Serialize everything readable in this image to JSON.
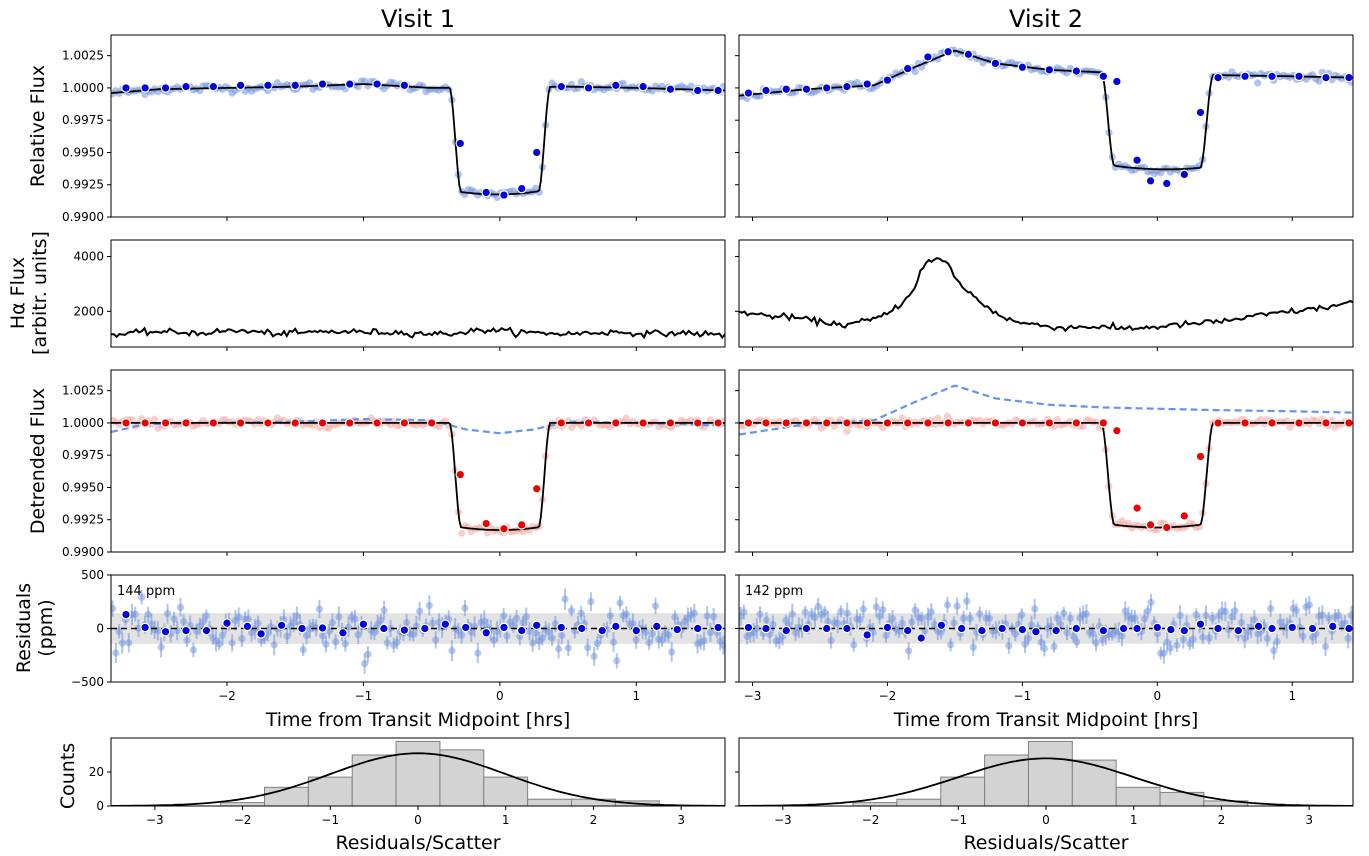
{
  "columns": [
    {
      "title": "Visit 1"
    },
    {
      "title": "Visit 2"
    }
  ],
  "labels": {
    "row1": "Relative Flux",
    "row2_line1": "Hα Flux",
    "row2_line2": "[arbitr. units]",
    "row3": "Detrended Flux",
    "row4_line1": "Residuals",
    "row4_line2": "(ppm)",
    "row5": "Counts",
    "time_xlabel": "Time from Transit Midpoint [hrs]",
    "hist_xlabel": "Residuals/Scatter"
  },
  "colors": {
    "raw_points": "#6f94e0",
    "binned_blue": "#0000dd",
    "binned_red": "#ee0000",
    "raw_red": "#f4a7a0",
    "model": "#000000",
    "baseline_dashed": "#6495ed",
    "hist_fill": "#d3d3d3",
    "hist_edge": "#808080",
    "scatter_band": "#d9d9d9"
  },
  "chart_data": [
    {
      "panel": "visit1-relative-flux",
      "type": "scatter",
      "title": "Visit 1",
      "ylabel": "Relative Flux",
      "xlim": [
        -2.85,
        1.65
      ],
      "ylim": [
        0.99,
        1.0041
      ],
      "yticks": [
        0.99,
        0.9925,
        0.995,
        0.9975,
        1.0,
        1.0025
      ],
      "transit": {
        "t0": 0.0,
        "depth": 0.0083,
        "ingress_half": 0.33
      },
      "baseline_nodes": [
        [
          -2.85,
          0.9996
        ],
        [
          -2.5,
          0.9999
        ],
        [
          -1.5,
          1.0001
        ],
        [
          -1.0,
          1.0003
        ],
        [
          -0.5,
          1.0
        ],
        [
          0.5,
          1.0001
        ],
        [
          1.0,
          1.0
        ],
        [
          1.65,
          0.9998
        ]
      ],
      "binned": [
        [
          -2.74,
          1.0
        ],
        [
          -2.6,
          1.0
        ],
        [
          -2.45,
          1.0
        ],
        [
          -2.3,
          1.0001
        ],
        [
          -2.1,
          1.0001
        ],
        [
          -1.9,
          1.0002
        ],
        [
          -1.7,
          1.0002
        ],
        [
          -1.5,
          1.0002
        ],
        [
          -1.3,
          1.0003
        ],
        [
          -1.1,
          1.0003
        ],
        [
          -0.9,
          1.0003
        ],
        [
          -0.7,
          1.0002
        ],
        [
          -0.29,
          0.9957
        ],
        [
          -0.1,
          0.9919
        ],
        [
          0.03,
          0.9917
        ],
        [
          0.16,
          0.9922
        ],
        [
          0.27,
          0.995
        ],
        [
          0.45,
          1.0001
        ],
        [
          0.65,
          1.0
        ],
        [
          0.85,
          1.0002
        ],
        [
          1.05,
          1.0001
        ],
        [
          1.25,
          0.9999
        ],
        [
          1.45,
          0.9998
        ],
        [
          1.6,
          0.9998
        ]
      ]
    },
    {
      "panel": "visit2-relative-flux",
      "type": "scatter",
      "title": "Visit 2",
      "xlim": [
        -3.1,
        1.45
      ],
      "ylim": [
        0.99,
        1.0041
      ],
      "yticks": [
        0.99,
        0.9925,
        0.995,
        0.9975,
        1.0,
        1.0025
      ],
      "transit": {
        "t0": 0.0,
        "depth": 0.0074,
        "ingress_half": 0.37
      },
      "baseline_nodes": [
        [
          -3.1,
          0.9994
        ],
        [
          -2.6,
          0.9999
        ],
        [
          -2.1,
          1.0002
        ],
        [
          -1.8,
          1.0016
        ],
        [
          -1.5,
          1.0029
        ],
        [
          -1.2,
          1.0019
        ],
        [
          -0.8,
          1.0014
        ],
        [
          -0.4,
          1.0012
        ],
        [
          0.4,
          1.001
        ],
        [
          1.0,
          1.0009
        ],
        [
          1.45,
          1.0008
        ]
      ],
      "binned": [
        [
          -3.03,
          0.9996
        ],
        [
          -2.9,
          0.9998
        ],
        [
          -2.75,
          0.9999
        ],
        [
          -2.6,
          0.9999
        ],
        [
          -2.45,
          1.0
        ],
        [
          -2.3,
          1.0001
        ],
        [
          -2.15,
          1.0003
        ],
        [
          -2.0,
          1.0006
        ],
        [
          -1.85,
          1.0015
        ],
        [
          -1.7,
          1.0024
        ],
        [
          -1.55,
          1.0028
        ],
        [
          -1.4,
          1.0026
        ],
        [
          -1.2,
          1.0019
        ],
        [
          -1.0,
          1.0016
        ],
        [
          -0.8,
          1.0014
        ],
        [
          -0.6,
          1.0013
        ],
        [
          -0.4,
          1.0009
        ],
        [
          -0.3,
          1.0005
        ],
        [
          -0.15,
          0.9944
        ],
        [
          -0.05,
          0.9928
        ],
        [
          0.07,
          0.9926
        ],
        [
          0.2,
          0.9933
        ],
        [
          0.32,
          0.9981
        ],
        [
          0.45,
          1.0008
        ],
        [
          0.65,
          1.0009
        ],
        [
          0.85,
          1.0009
        ],
        [
          1.05,
          1.0009
        ],
        [
          1.25,
          1.0008
        ],
        [
          1.42,
          1.0008
        ]
      ]
    },
    {
      "panel": "visit1-halpha",
      "type": "line",
      "ylabel": "Hα Flux [arbitr. units]",
      "xlim": [
        -2.85,
        1.65
      ],
      "ylim": [
        700,
        4600
      ],
      "yticks": [
        2000,
        4000
      ],
      "x": [
        -2.85,
        -2.55,
        -2.2,
        -1.95,
        -1.6,
        -1.3,
        -1.0,
        -0.7,
        -0.4,
        -0.1,
        0.2,
        0.5,
        0.8,
        1.1,
        1.4,
        1.65
      ],
      "y": [
        1130,
        1260,
        1210,
        1300,
        1180,
        1260,
        1250,
        1220,
        1170,
        1330,
        1220,
        1180,
        1240,
        1190,
        1210,
        1120
      ]
    },
    {
      "panel": "visit2-halpha",
      "type": "line",
      "xlim": [
        -3.1,
        1.45
      ],
      "ylim": [
        700,
        4600
      ],
      "yticks": [
        2000,
        4000
      ],
      "x": [
        -3.1,
        -2.9,
        -2.7,
        -2.5,
        -2.3,
        -2.1,
        -2.0,
        -1.9,
        -1.85,
        -1.8,
        -1.75,
        -1.7,
        -1.65,
        -1.6,
        -1.55,
        -1.5,
        -1.45,
        -1.4,
        -1.3,
        -1.2,
        -1.1,
        -1.0,
        -0.85,
        -0.7,
        -0.5,
        -0.3,
        -0.1,
        0.1,
        0.3,
        0.5,
        0.7,
        0.9,
        1.1,
        1.3,
        1.45
      ],
      "y": [
        1990,
        1840,
        1780,
        1620,
        1500,
        1720,
        1900,
        2300,
        2500,
        2900,
        3500,
        3800,
        3900,
        3850,
        3700,
        3300,
        2900,
        2700,
        2300,
        1950,
        1700,
        1570,
        1480,
        1400,
        1450,
        1380,
        1400,
        1480,
        1560,
        1650,
        1800,
        1950,
        2050,
        2180,
        2350
      ]
    },
    {
      "panel": "visit1-detrended-flux",
      "type": "scatter",
      "ylabel": "Detrended Flux",
      "xlim": [
        -2.85,
        1.65
      ],
      "ylim": [
        0.99,
        1.0041
      ],
      "yticks": [
        0.99,
        0.9925,
        0.995,
        0.9975,
        1.0,
        1.0025
      ],
      "transit": {
        "t0": 0.0,
        "depth": 0.0083,
        "ingress_half": 0.33
      },
      "baseline_nodes": [
        [
          -2.85,
          0.9993
        ],
        [
          -2.6,
          0.9999
        ],
        [
          -2.2,
          1.0
        ],
        [
          -1.5,
          1.0001
        ],
        [
          -1.0,
          1.0003
        ],
        [
          -0.5,
          1.0002
        ],
        [
          -0.25,
          0.9995
        ],
        [
          0.0,
          0.9992
        ],
        [
          0.25,
          0.9995
        ],
        [
          0.5,
          1.0001
        ],
        [
          1.0,
          1.0
        ],
        [
          1.65,
          0.9998
        ]
      ],
      "binned": [
        [
          -2.74,
          1.0
        ],
        [
          -2.6,
          1.0
        ],
        [
          -2.45,
          1.0
        ],
        [
          -2.3,
          1.0
        ],
        [
          -2.1,
          1.0
        ],
        [
          -1.9,
          1.0
        ],
        [
          -1.7,
          1.0
        ],
        [
          -1.5,
          1.0
        ],
        [
          -1.3,
          1.0
        ],
        [
          -1.1,
          1.0
        ],
        [
          -0.9,
          1.0
        ],
        [
          -0.7,
          1.0
        ],
        [
          -0.5,
          1.0
        ],
        [
          -0.29,
          0.996
        ],
        [
          -0.1,
          0.9922
        ],
        [
          0.03,
          0.9918
        ],
        [
          0.16,
          0.9921
        ],
        [
          0.27,
          0.9949
        ],
        [
          0.45,
          1.0
        ],
        [
          0.65,
          1.0
        ],
        [
          0.85,
          1.0
        ],
        [
          1.05,
          1.0
        ],
        [
          1.25,
          1.0
        ],
        [
          1.45,
          1.0
        ],
        [
          1.6,
          1.0
        ]
      ]
    },
    {
      "panel": "visit2-detrended-flux",
      "type": "scatter",
      "xlim": [
        -3.1,
        1.45
      ],
      "ylim": [
        0.99,
        1.0041
      ],
      "yticks": [
        0.99,
        0.9925,
        0.995,
        0.9975,
        1.0,
        1.0025
      ],
      "transit": {
        "t0": 0.0,
        "depth": 0.0081,
        "ingress_half": 0.37
      },
      "baseline_nodes": [
        [
          -3.1,
          0.9991
        ],
        [
          -2.6,
          0.9999
        ],
        [
          -2.1,
          1.0002
        ],
        [
          -1.8,
          1.0016
        ],
        [
          -1.5,
          1.0029
        ],
        [
          -1.2,
          1.0019
        ],
        [
          -0.8,
          1.0014
        ],
        [
          -0.4,
          1.0012
        ],
        [
          0.4,
          1.001
        ],
        [
          1.0,
          1.0009
        ],
        [
          1.45,
          1.0008
        ]
      ],
      "binned": [
        [
          -3.03,
          1.0
        ],
        [
          -2.9,
          1.0
        ],
        [
          -2.75,
          1.0
        ],
        [
          -2.6,
          1.0
        ],
        [
          -2.45,
          1.0
        ],
        [
          -2.3,
          1.0
        ],
        [
          -2.15,
          1.0
        ],
        [
          -2.0,
          1.0
        ],
        [
          -1.85,
          1.0
        ],
        [
          -1.7,
          1.0
        ],
        [
          -1.55,
          1.0
        ],
        [
          -1.4,
          1.0
        ],
        [
          -1.2,
          1.0
        ],
        [
          -1.0,
          1.0
        ],
        [
          -0.8,
          1.0
        ],
        [
          -0.6,
          1.0
        ],
        [
          -0.4,
          1.0
        ],
        [
          -0.3,
          0.9994
        ],
        [
          -0.15,
          0.9934
        ],
        [
          -0.05,
          0.9921
        ],
        [
          0.07,
          0.9919
        ],
        [
          0.2,
          0.9928
        ],
        [
          0.32,
          0.9974
        ],
        [
          0.45,
          1.0
        ],
        [
          0.65,
          1.0
        ],
        [
          0.85,
          1.0
        ],
        [
          1.05,
          1.0
        ],
        [
          1.25,
          1.0
        ],
        [
          1.42,
          1.0
        ]
      ]
    },
    {
      "panel": "visit1-residuals",
      "type": "scatter",
      "ylabel": "Residuals (ppm)",
      "xlabel": "Time from Transit Midpoint [hrs]",
      "xlim": [
        -2.85,
        1.65
      ],
      "ylim": [
        -500,
        500
      ],
      "yticks": [
        -500,
        0,
        500
      ],
      "xticks": [
        -2,
        -1,
        0,
        1
      ],
      "scatter_ppm": 144,
      "annotation": "144 ppm",
      "binned": [
        [
          -2.74,
          130
        ],
        [
          -2.6,
          10
        ],
        [
          -2.45,
          -30
        ],
        [
          -2.3,
          -20
        ],
        [
          -2.15,
          -20
        ],
        [
          -2.0,
          50
        ],
        [
          -1.85,
          20
        ],
        [
          -1.75,
          -50
        ],
        [
          -1.6,
          30
        ],
        [
          -1.45,
          0
        ],
        [
          -1.3,
          5
        ],
        [
          -1.15,
          -40
        ],
        [
          -1.0,
          40
        ],
        [
          -0.85,
          0
        ],
        [
          -0.7,
          -15
        ],
        [
          -0.55,
          0
        ],
        [
          -0.4,
          40
        ],
        [
          -0.25,
          10
        ],
        [
          -0.1,
          -40
        ],
        [
          0.03,
          10
        ],
        [
          0.16,
          -20
        ],
        [
          0.27,
          30
        ],
        [
          0.45,
          10
        ],
        [
          0.6,
          0
        ],
        [
          0.75,
          -20
        ],
        [
          0.85,
          20
        ],
        [
          1.0,
          -20
        ],
        [
          1.15,
          20
        ],
        [
          1.3,
          -10
        ],
        [
          1.45,
          0
        ],
        [
          1.6,
          10
        ]
      ]
    },
    {
      "panel": "visit2-residuals",
      "type": "scatter",
      "xlabel": "Time from Transit Midpoint [hrs]",
      "xlim": [
        -3.1,
        1.45
      ],
      "ylim": [
        -500,
        500
      ],
      "yticks": [
        -500,
        0,
        500
      ],
      "xticks": [
        -3,
        -2,
        -1,
        0,
        1
      ],
      "scatter_ppm": 142,
      "annotation": "142 ppm",
      "binned": [
        [
          -3.03,
          10
        ],
        [
          -2.9,
          0
        ],
        [
          -2.75,
          -20
        ],
        [
          -2.6,
          0
        ],
        [
          -2.45,
          0
        ],
        [
          -2.3,
          0
        ],
        [
          -2.15,
          -60
        ],
        [
          -2.0,
          10
        ],
        [
          -1.85,
          -20
        ],
        [
          -1.75,
          -90
        ],
        [
          -1.6,
          30
        ],
        [
          -1.45,
          0
        ],
        [
          -1.3,
          -20
        ],
        [
          -1.15,
          0
        ],
        [
          -1.0,
          -10
        ],
        [
          -0.9,
          -30
        ],
        [
          -0.75,
          -20
        ],
        [
          -0.6,
          0
        ],
        [
          -0.4,
          -20
        ],
        [
          -0.25,
          0
        ],
        [
          -0.15,
          0
        ],
        [
          0.0,
          10
        ],
        [
          0.1,
          -10
        ],
        [
          0.2,
          -20
        ],
        [
          0.32,
          40
        ],
        [
          0.45,
          0
        ],
        [
          0.6,
          -20
        ],
        [
          0.75,
          20
        ],
        [
          0.85,
          0
        ],
        [
          1.0,
          10
        ],
        [
          1.15,
          0
        ],
        [
          1.3,
          20
        ],
        [
          1.42,
          0
        ]
      ]
    },
    {
      "panel": "visit1-histogram",
      "type": "bar",
      "ylabel": "Counts",
      "xlabel": "Residuals/Scatter",
      "xlim": [
        -3.5,
        3.5
      ],
      "ylim": [
        0,
        40
      ],
      "yticks": [
        0,
        20
      ],
      "xticks": [
        -3,
        -2,
        -1,
        0,
        1,
        2,
        3
      ],
      "bin_edges": [
        -2.25,
        -1.75,
        -1.25,
        -0.75,
        -0.25,
        0.25,
        0.75,
        1.25,
        1.75,
        2.25,
        2.75
      ],
      "counts": [
        2,
        11,
        17,
        30,
        38,
        33,
        17,
        4,
        4,
        3
      ],
      "gaussian_peak": 31
    },
    {
      "panel": "visit2-histogram",
      "type": "bar",
      "xlabel": "Residuals/Scatter",
      "xlim": [
        -3.5,
        3.5
      ],
      "ylim": [
        0,
        40
      ],
      "yticks": [
        0,
        20
      ],
      "xticks": [
        -3,
        -2,
        -1,
        0,
        1,
        2,
        3
      ],
      "bin_edges": [
        -2.2,
        -1.7,
        -1.2,
        -0.7,
        -0.2,
        0.3,
        0.8,
        1.3,
        1.8,
        2.3
      ],
      "counts": [
        2,
        4,
        17,
        30,
        38,
        27,
        11,
        8,
        3
      ],
      "gaussian_peak": 28
    }
  ]
}
